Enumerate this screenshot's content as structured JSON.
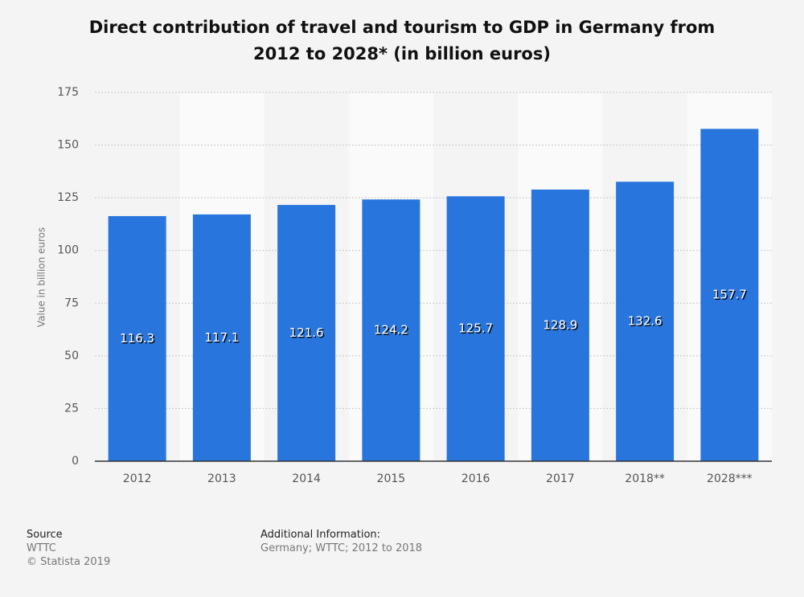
{
  "chart_data": {
    "type": "bar",
    "title": "Direct contribution of travel and tourism to GDP in Germany from 2012 to 2028* (in billion euros)",
    "y_label": "Value in billion euros",
    "categories": [
      "2012",
      "2013",
      "2014",
      "2015",
      "2016",
      "2017",
      "2018**",
      "2028***"
    ],
    "values": [
      116.3,
      117.1,
      121.6,
      124.2,
      125.7,
      128.9,
      132.6,
      157.7
    ],
    "color": "#2876dd",
    "ylim": [
      0,
      175
    ],
    "yticks": [
      0,
      25,
      50,
      75,
      100,
      125,
      150,
      175
    ],
    "grid": true,
    "source_heading": "Source",
    "source": "WTTC",
    "copyright": "© Statista 2019",
    "info_heading": "Additional Information:",
    "info": "Germany; WTTC; 2012 to 2018"
  }
}
